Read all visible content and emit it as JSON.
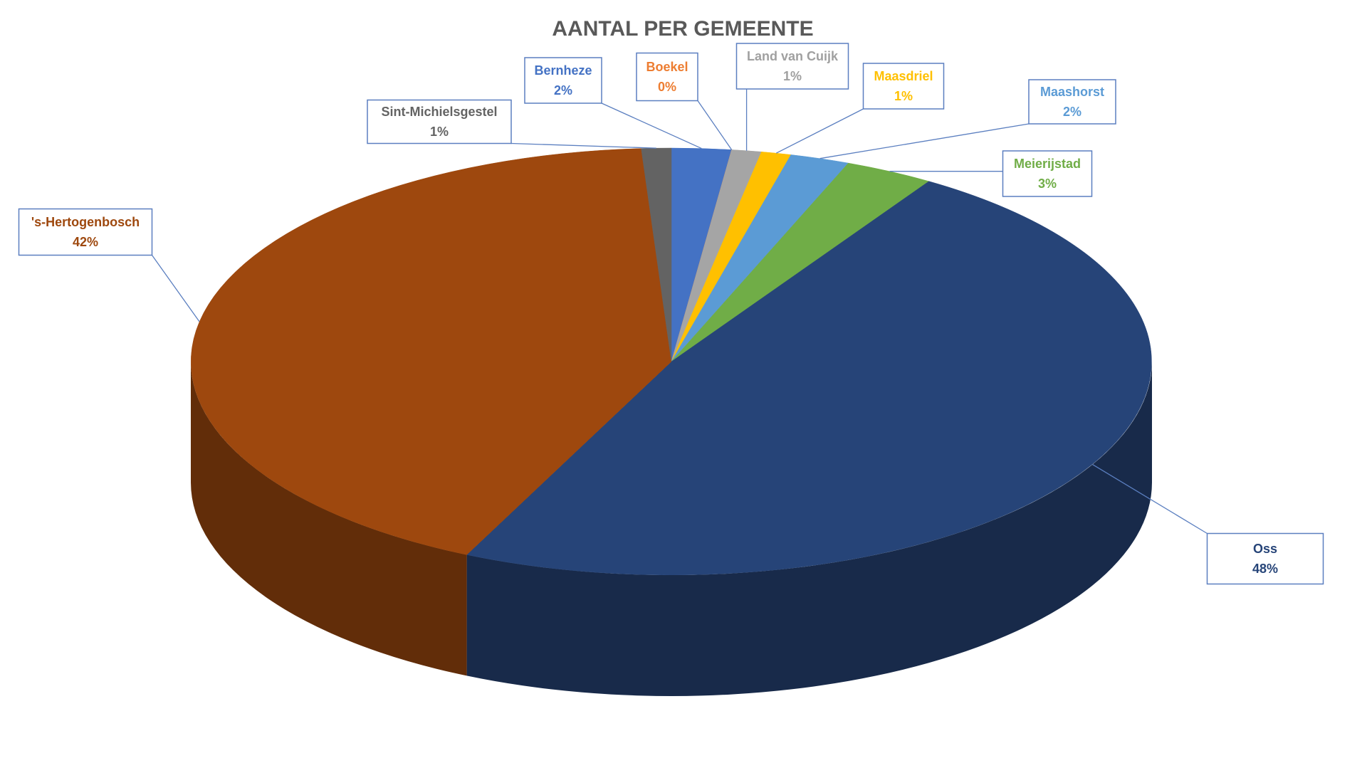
{
  "chart_data": {
    "type": "pie",
    "title": "AANTAL PER GEMEENTE",
    "categories": [
      "Bernheze",
      "Boekel",
      "Land van Cuijk",
      "Maasdriel",
      "Maashorst",
      "Meierijstad",
      "Oss",
      "'s-Hertogenbosch",
      "Sint-Michielsgestel"
    ],
    "values": [
      2,
      0,
      1,
      1,
      2,
      3,
      48,
      42,
      1
    ],
    "value_labels": [
      "2%",
      "0%",
      "1%",
      "1%",
      "2%",
      "3%",
      "48%",
      "42%",
      "1%"
    ],
    "colors": [
      "#4472c4",
      "#ed7d31",
      "#a5a5a5",
      "#ffc000",
      "#5b9bd5",
      "#70ad47",
      "#264478",
      "#9e480e",
      "#636363"
    ]
  }
}
